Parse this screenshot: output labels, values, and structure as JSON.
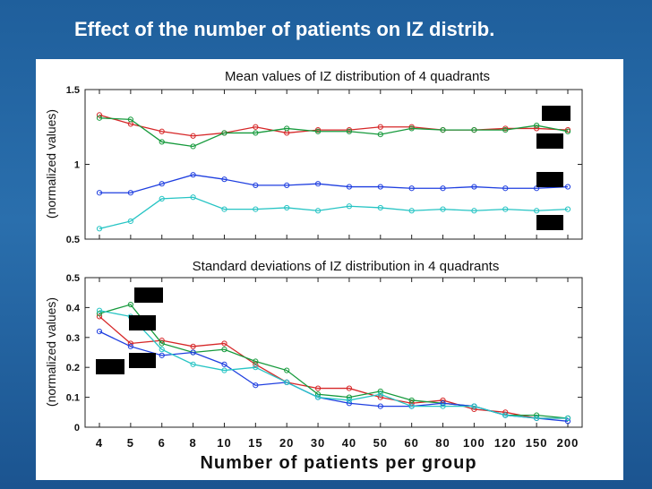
{
  "slide": {
    "title": "Effect of the number of patients on IZ distrib."
  },
  "colors": {
    "background": "#2a6fad",
    "red": "#d62728",
    "green": "#169a3c",
    "blue": "#1f3fe0",
    "cyan": "#26c4c4"
  },
  "chart_data": [
    {
      "type": "line",
      "title": "Mean values of IZ distribution of 4 quadrants",
      "ylabel": "(normalized values)",
      "xlabel": "",
      "categories": [
        "4",
        "5",
        "6",
        "8",
        "10",
        "15",
        "20",
        "30",
        "40",
        "50",
        "60",
        "80",
        "100",
        "120",
        "150",
        "200"
      ],
      "ylim": [
        0.5,
        1.5
      ],
      "yticks": [
        "0.5",
        "1",
        "1.5"
      ],
      "grid": false,
      "series": [
        {
          "color": "#d62728",
          "values": [
            1.33,
            1.27,
            1.22,
            1.19,
            1.21,
            1.25,
            1.21,
            1.23,
            1.23,
            1.25,
            1.25,
            1.23,
            1.23,
            1.24,
            1.24,
            1.23
          ]
        },
        {
          "color": "#169a3c",
          "values": [
            1.31,
            1.3,
            1.15,
            1.12,
            1.21,
            1.21,
            1.24,
            1.22,
            1.22,
            1.2,
            1.24,
            1.23,
            1.23,
            1.23,
            1.26,
            1.22
          ]
        },
        {
          "color": "#1f3fe0",
          "values": [
            0.81,
            0.81,
            0.87,
            0.93,
            0.9,
            0.86,
            0.86,
            0.87,
            0.85,
            0.85,
            0.84,
            0.84,
            0.85,
            0.84,
            0.84,
            0.85
          ]
        },
        {
          "color": "#26c4c4",
          "values": [
            0.57,
            0.62,
            0.77,
            0.78,
            0.7,
            0.7,
            0.71,
            0.69,
            0.72,
            0.71,
            0.69,
            0.7,
            0.69,
            0.7,
            0.69,
            0.7
          ]
        }
      ]
    },
    {
      "type": "line",
      "title": "Standard deviations of IZ distribution in 4 quadrants",
      "ylabel": "(normalized values)",
      "xlabel": "Number of patients per group",
      "categories": [
        "4",
        "5",
        "6",
        "8",
        "10",
        "15",
        "20",
        "30",
        "40",
        "50",
        "60",
        "80",
        "100",
        "120",
        "150",
        "200"
      ],
      "ylim": [
        0,
        0.5
      ],
      "yticks": [
        "0",
        "0.1",
        "0.2",
        "0.3",
        "0.4",
        "0.5"
      ],
      "grid": false,
      "series": [
        {
          "color": "#d62728",
          "values": [
            0.37,
            0.28,
            0.29,
            0.27,
            0.28,
            0.21,
            0.15,
            0.13,
            0.13,
            0.1,
            0.08,
            0.09,
            0.06,
            0.05,
            0.03,
            0.03
          ]
        },
        {
          "color": "#169a3c",
          "values": [
            0.38,
            0.41,
            0.28,
            0.25,
            0.26,
            0.22,
            0.19,
            0.11,
            0.1,
            0.12,
            0.09,
            0.08,
            0.07,
            0.04,
            0.04,
            0.03
          ]
        },
        {
          "color": "#1f3fe0",
          "values": [
            0.32,
            0.27,
            0.24,
            0.25,
            0.21,
            0.14,
            0.15,
            0.1,
            0.08,
            0.07,
            0.07,
            0.08,
            0.07,
            0.04,
            0.03,
            0.02
          ]
        },
        {
          "color": "#26c4c4",
          "values": [
            0.39,
            0.37,
            0.26,
            0.21,
            0.19,
            0.2,
            0.15,
            0.1,
            0.09,
            0.11,
            0.07,
            0.07,
            0.07,
            0.04,
            0.03,
            0.03
          ]
        }
      ]
    }
  ]
}
